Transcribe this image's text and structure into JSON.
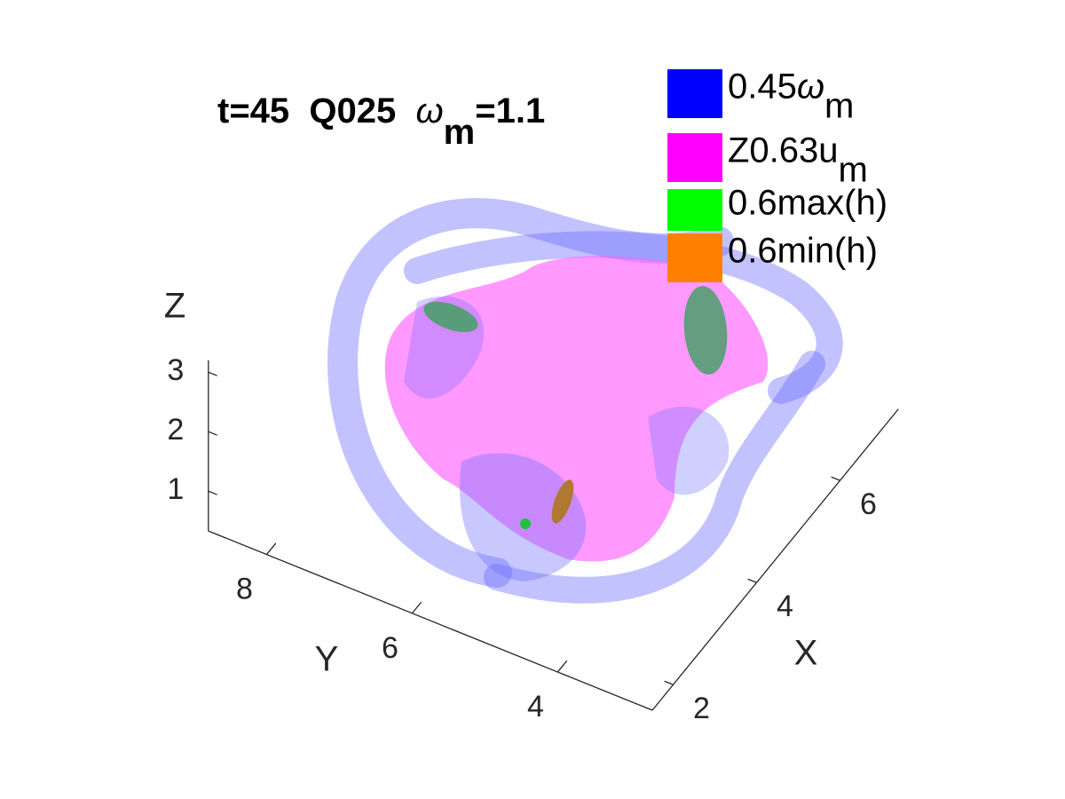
{
  "chart_data": {
    "type": "surface3d",
    "title": {
      "text": "t=45  Q025  ",
      "symbol": "ω",
      "sub": "m",
      "tail": "=1.1"
    },
    "legend": [
      {
        "name": "0.45",
        "symbol": "ω",
        "sub": "m",
        "color": "#0000ff"
      },
      {
        "name": "Z0.63u",
        "sub": "m",
        "color": "#ff00ff"
      },
      {
        "name": "0.6max(h)",
        "color": "#00ff00"
      },
      {
        "name": "0.6min(h)",
        "color": "#ff8000"
      }
    ],
    "xlabel": "X",
    "ylabel": "Y",
    "zlabel": "Z",
    "xlim": [
      1.5,
      7.4
    ],
    "xticks": [
      2,
      4,
      6
    ],
    "ylim": [
      2.7,
      8.8
    ],
    "yticks": [
      4,
      6,
      8
    ],
    "zlim": [
      0.33,
      3.2
    ],
    "zticks": [
      1,
      2,
      3
    ]
  }
}
